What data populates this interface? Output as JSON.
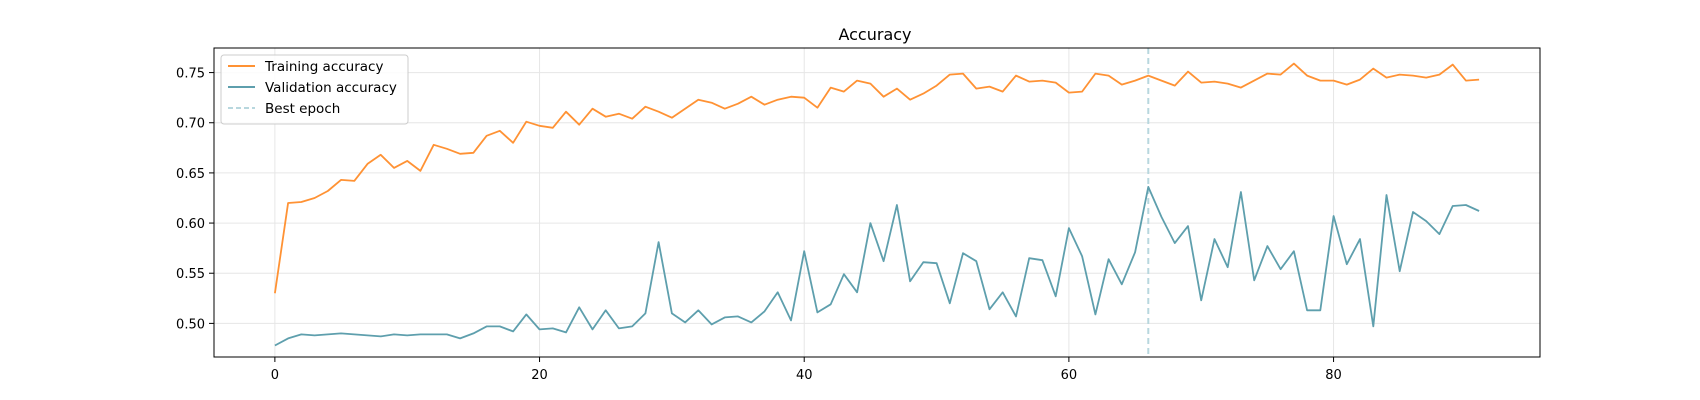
{
  "chart_data": {
    "type": "line",
    "title": "Accuracy",
    "xlabel": "",
    "ylabel": "",
    "xlim": [
      -4.6,
      95.6
    ],
    "ylim": [
      0.4665,
      0.7745
    ],
    "xticks": [
      0,
      20,
      40,
      60,
      80
    ],
    "yticks": [
      0.5,
      0.55,
      0.6,
      0.65,
      0.7,
      0.75
    ],
    "grid": true,
    "legend_position": "top-left",
    "best_epoch": 66,
    "series": [
      {
        "name": "Training accuracy",
        "color": "#ff9234",
        "values": [
          0.53,
          0.62,
          0.621,
          0.625,
          0.632,
          0.643,
          0.642,
          0.659,
          0.668,
          0.655,
          0.662,
          0.652,
          0.678,
          0.674,
          0.669,
          0.67,
          0.687,
          0.692,
          0.68,
          0.701,
          0.697,
          0.695,
          0.711,
          0.698,
          0.714,
          0.706,
          0.709,
          0.704,
          0.716,
          0.711,
          0.705,
          0.714,
          0.723,
          0.72,
          0.714,
          0.719,
          0.726,
          0.718,
          0.723,
          0.726,
          0.725,
          0.715,
          0.735,
          0.731,
          0.742,
          0.739,
          0.726,
          0.734,
          0.723,
          0.729,
          0.737,
          0.748,
          0.749,
          0.734,
          0.736,
          0.731,
          0.747,
          0.741,
          0.742,
          0.74,
          0.73,
          0.731,
          0.749,
          0.747,
          0.738,
          0.742,
          0.747,
          0.742,
          0.737,
          0.751,
          0.74,
          0.741,
          0.739,
          0.735,
          0.742,
          0.749,
          0.748,
          0.759,
          0.747,
          0.742,
          0.742,
          0.738,
          0.743,
          0.754,
          0.745,
          0.748,
          0.747,
          0.745,
          0.748,
          0.758,
          0.742,
          0.743
        ]
      },
      {
        "name": "Validation accuracy",
        "color": "#5e9fad",
        "values": [
          0.478,
          0.485,
          0.489,
          0.488,
          0.489,
          0.49,
          0.489,
          0.488,
          0.487,
          0.489,
          0.488,
          0.489,
          0.489,
          0.489,
          0.485,
          0.49,
          0.497,
          0.497,
          0.492,
          0.509,
          0.494,
          0.495,
          0.491,
          0.516,
          0.494,
          0.513,
          0.495,
          0.497,
          0.51,
          0.581,
          0.51,
          0.501,
          0.513,
          0.499,
          0.506,
          0.507,
          0.501,
          0.512,
          0.531,
          0.503,
          0.572,
          0.511,
          0.519,
          0.549,
          0.531,
          0.6,
          0.562,
          0.618,
          0.542,
          0.561,
          0.56,
          0.52,
          0.57,
          0.562,
          0.514,
          0.531,
          0.507,
          0.565,
          0.563,
          0.527,
          0.595,
          0.567,
          0.509,
          0.564,
          0.539,
          0.571,
          0.636,
          0.606,
          0.58,
          0.597,
          0.523,
          0.584,
          0.556,
          0.631,
          0.543,
          0.577,
          0.554,
          0.572,
          0.513,
          0.513,
          0.607,
          0.559,
          0.584,
          0.497,
          0.628,
          0.552,
          0.611,
          0.602,
          0.589,
          0.617,
          0.618,
          0.612
        ]
      }
    ],
    "legend": [
      {
        "label": "Training accuracy",
        "color": "#ff9234",
        "style": "solid"
      },
      {
        "label": "Validation accuracy",
        "color": "#5e9fad",
        "style": "solid"
      },
      {
        "label": "Best epoch",
        "color": "#b8d7de",
        "style": "dashed"
      }
    ]
  }
}
